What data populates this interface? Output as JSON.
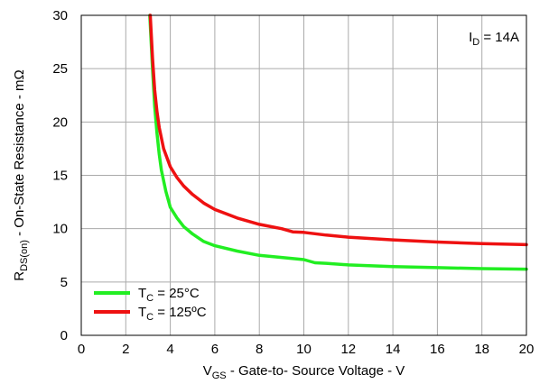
{
  "chart_data": {
    "type": "line",
    "xlabel": {
      "main": "V",
      "sub": "GS",
      "rest": " - Gate-to- Source Voltage - V"
    },
    "ylabel": {
      "main": "R",
      "sub": "DS(on)",
      "rest": " - On-State Resistance - mΩ"
    },
    "xlim": [
      0,
      20
    ],
    "ylim": [
      0,
      30
    ],
    "xticks": [
      0,
      2,
      4,
      6,
      8,
      10,
      12,
      14,
      16,
      18,
      20
    ],
    "yticks": [
      0,
      5,
      10,
      15,
      20,
      25,
      30
    ],
    "grid": true,
    "legend_position": "bottom-left",
    "annotation": {
      "main": "I",
      "sub": "D",
      "rest": " = 14A",
      "position": "top-right"
    },
    "series": [
      {
        "name": "T_C = 25°C",
        "label": {
          "main": "T",
          "sub": "C",
          "rest": " = 25°C"
        },
        "color": "#22ee22",
        "x": [
          3.08,
          3.2,
          3.3,
          3.4,
          3.5,
          3.6,
          3.8,
          4.0,
          4.3,
          4.6,
          5.0,
          5.5,
          6.0,
          7.0,
          8.0,
          9.0,
          10.0,
          10.5,
          11.0,
          12.0,
          14.0,
          16.0,
          18.0,
          20.0
        ],
        "y": [
          30.0,
          25.0,
          21.5,
          19.0,
          17.0,
          15.5,
          13.5,
          12.0,
          11.0,
          10.2,
          9.5,
          8.8,
          8.4,
          7.9,
          7.5,
          7.3,
          7.1,
          6.8,
          6.75,
          6.6,
          6.45,
          6.35,
          6.25,
          6.2
        ]
      },
      {
        "name": "T_C = 125°C",
        "label": {
          "main": "T",
          "sub": "C",
          "rest": " = 125ºC"
        },
        "color": "#ee1111",
        "x": [
          3.1,
          3.2,
          3.3,
          3.4,
          3.5,
          3.7,
          4.0,
          4.3,
          4.6,
          5.0,
          5.5,
          6.0,
          7.0,
          8.0,
          9.0,
          9.5,
          10.0,
          11.0,
          12.0,
          14.0,
          16.0,
          18.0,
          20.0
        ],
        "y": [
          30.0,
          26.0,
          23.0,
          21.0,
          19.5,
          17.5,
          15.8,
          14.8,
          14.0,
          13.2,
          12.4,
          11.8,
          11.0,
          10.4,
          10.0,
          9.7,
          9.65,
          9.4,
          9.2,
          8.95,
          8.75,
          8.6,
          8.5
        ]
      }
    ]
  }
}
